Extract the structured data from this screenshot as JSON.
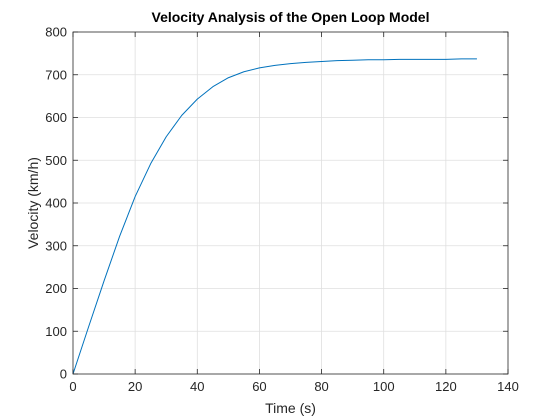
{
  "chart_data": {
    "type": "line",
    "title": "Velocity Analysis of the Open Loop Model",
    "xlabel": "Time (s)",
    "ylabel": "Velocity (km/h)",
    "xlim": [
      0,
      140
    ],
    "ylim": [
      0,
      800
    ],
    "xticks": [
      0,
      20,
      40,
      60,
      80,
      100,
      120,
      140
    ],
    "yticks": [
      0,
      100,
      200,
      300,
      400,
      500,
      600,
      700,
      800
    ],
    "grid": true,
    "series": [
      {
        "color": "#0072BD",
        "x": [
          0,
          5,
          10,
          15,
          20,
          25,
          30,
          35,
          40,
          45,
          50,
          55,
          60,
          65,
          70,
          75,
          80,
          85,
          90,
          95,
          100,
          105,
          110,
          115,
          120,
          125,
          130
        ],
        "y": [
          0,
          110,
          218,
          322,
          415,
          492,
          555,
          605,
          643,
          672,
          693,
          707,
          716,
          722,
          726,
          729,
          731,
          733,
          734,
          735,
          735,
          736,
          736,
          736,
          736,
          737,
          737
        ]
      }
    ]
  }
}
